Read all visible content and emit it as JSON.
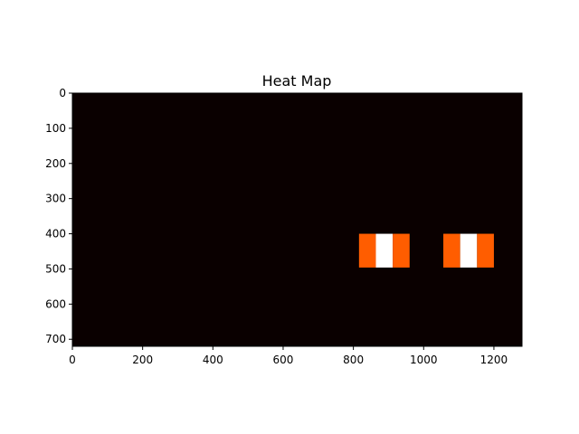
{
  "chart_data": {
    "type": "heatmap",
    "title": "Heat Map",
    "colormap": "hot",
    "image_width": 1280,
    "image_height": 720,
    "background_value": 0,
    "background_color": "#0a0000",
    "xlim": [
      0,
      1280
    ],
    "ylim": [
      720,
      0
    ],
    "x_ticks": [
      0,
      200,
      400,
      600,
      800,
      1000,
      1200
    ],
    "y_ticks": [
      0,
      100,
      200,
      300,
      400,
      500,
      600,
      700
    ],
    "hot_regions": [
      {
        "x": [
          816,
          864
        ],
        "y": [
          400,
          496
        ],
        "value": 1,
        "color": "#ff5d00"
      },
      {
        "x": [
          864,
          912
        ],
        "y": [
          400,
          496
        ],
        "value": 2,
        "color": "#ffffff"
      },
      {
        "x": [
          912,
          960
        ],
        "y": [
          400,
          496
        ],
        "value": 1,
        "color": "#ff5d00"
      },
      {
        "x": [
          1056,
          1104
        ],
        "y": [
          400,
          496
        ],
        "value": 1,
        "color": "#ff5d00"
      },
      {
        "x": [
          1104,
          1152
        ],
        "y": [
          400,
          496
        ],
        "value": 2,
        "color": "#ffffff"
      },
      {
        "x": [
          1152,
          1200
        ],
        "y": [
          400,
          496
        ],
        "value": 1,
        "color": "#ff5d00"
      }
    ]
  }
}
